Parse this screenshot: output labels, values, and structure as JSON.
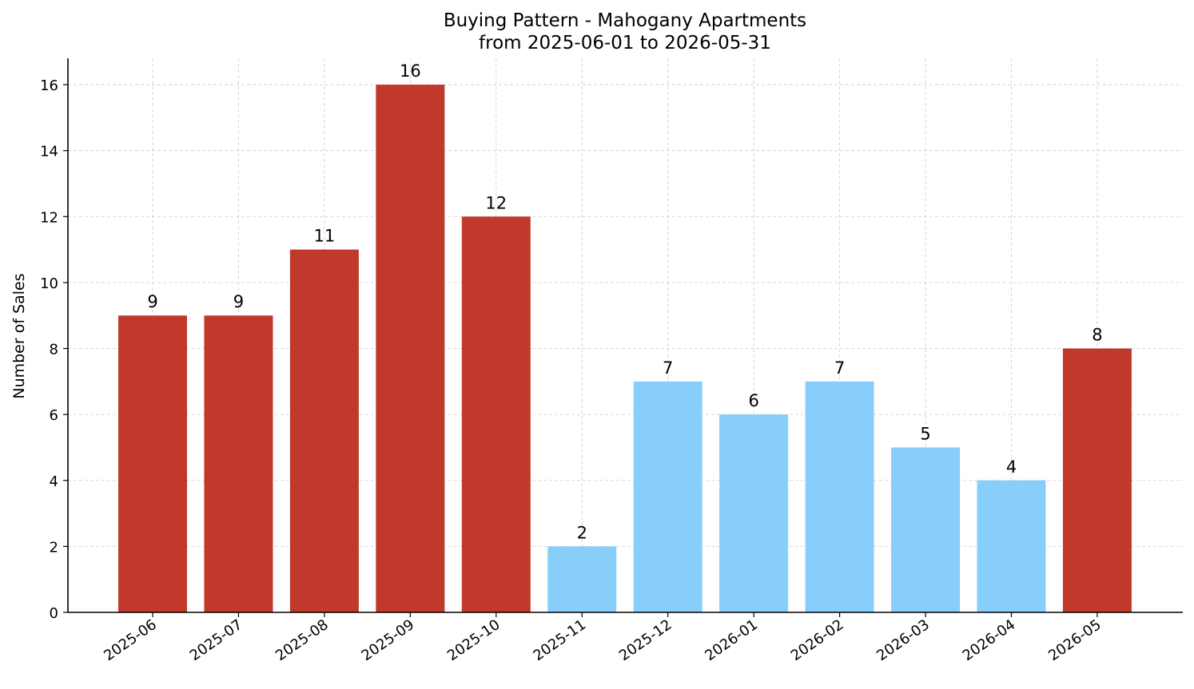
{
  "chart_data": {
    "type": "bar",
    "title": "Buying Pattern - Mahogany Apartments",
    "subtitle": "from 2025-06-01 to 2026-05-31",
    "xlabel": "",
    "ylabel": "Number of Sales",
    "ylim": [
      0,
      16.8
    ],
    "yticks": [
      0,
      2,
      4,
      6,
      8,
      10,
      12,
      14,
      16
    ],
    "grid": true,
    "categories": [
      "2025-06",
      "2025-07",
      "2025-08",
      "2025-09",
      "2025-10",
      "2025-11",
      "2025-12",
      "2026-01",
      "2026-02",
      "2026-03",
      "2026-04",
      "2026-05"
    ],
    "values": [
      9,
      9,
      11,
      16,
      12,
      2,
      7,
      6,
      7,
      5,
      4,
      8
    ],
    "data_labels": [
      "9",
      "9",
      "11",
      "16",
      "12",
      "2",
      "7",
      "6",
      "7",
      "5",
      "4",
      "8"
    ],
    "bar_colors": [
      "#c0392b",
      "#c0392b",
      "#c0392b",
      "#c0392b",
      "#c0392b",
      "#87cefa",
      "#87cefa",
      "#87cefa",
      "#87cefa",
      "#87cefa",
      "#87cefa",
      "#c0392b"
    ]
  }
}
